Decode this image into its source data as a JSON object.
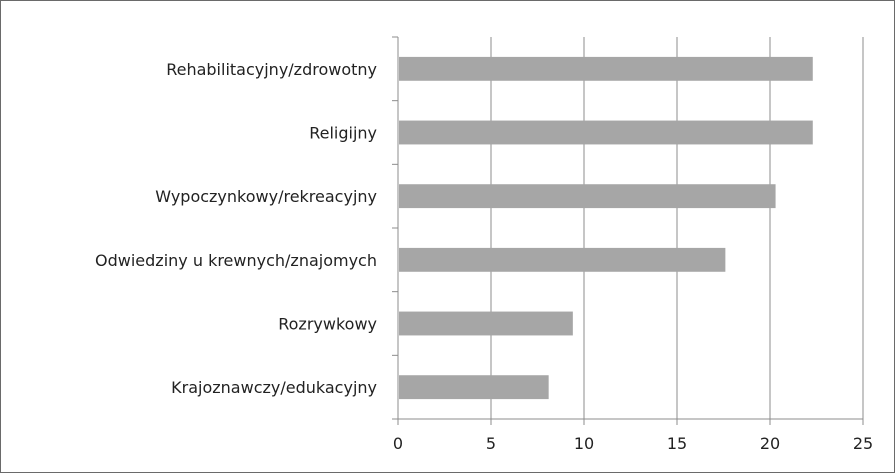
{
  "chart_data": {
    "type": "bar",
    "orientation": "horizontal",
    "title": "",
    "xlabel": "",
    "ylabel": "",
    "categories": [
      "Rehabilitacyjny/zdrowotny",
      "Religijny",
      "Wypoczynkowy/rekreacyjny",
      "Odwiedziny u krewnych/znajomych",
      "Rozrywkowy",
      "Krajoznawczy/edukacyjny"
    ],
    "values": [
      22.3,
      22.3,
      20.3,
      17.6,
      9.4,
      8.1
    ],
    "xlim": [
      0,
      25
    ],
    "xticks": [
      "0",
      "5",
      "10",
      "15",
      "20",
      "25"
    ],
    "grid": "vertical",
    "legend": "none",
    "colors": {
      "bar": "#a6a6a6",
      "grid": "#8c8c8c",
      "axis": "#8c8c8c",
      "frame": "#6a6a6a",
      "text": "#222222"
    }
  }
}
